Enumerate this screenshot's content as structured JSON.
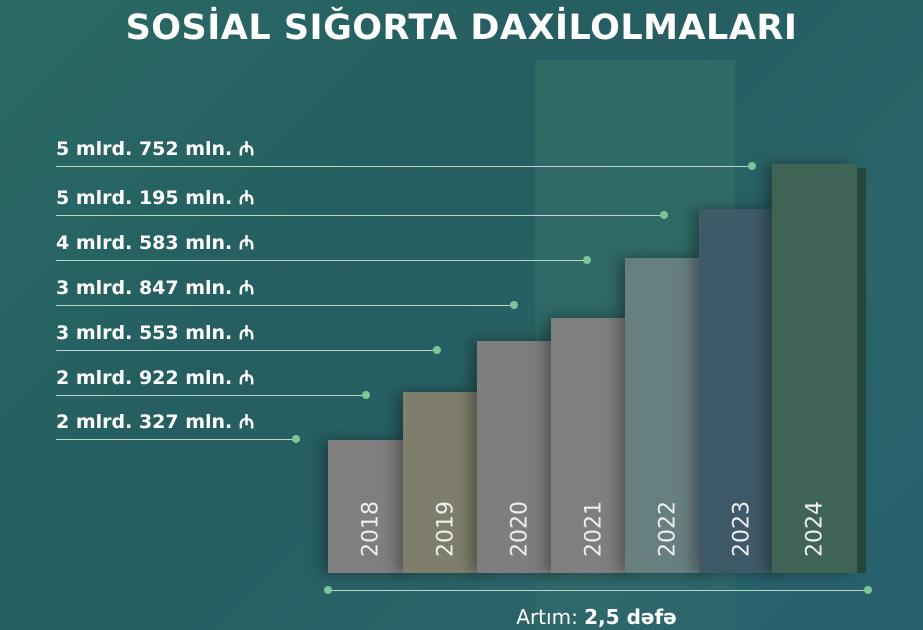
{
  "title": "SOSİAL SIĞORTA DAXİLOLMALARI",
  "chart_data": {
    "type": "bar",
    "title": "SOSİAL SIĞORTA DAXİLOLMALARI",
    "categories": [
      "2018",
      "2019",
      "2020",
      "2021",
      "2022",
      "2023",
      "2024"
    ],
    "values": [
      2327,
      2922,
      3553,
      3847,
      4583,
      5195,
      5752
    ],
    "unit": "mln. ₼",
    "labels": [
      "2 mlrd. 327 mln.",
      "2 mlrd. 922 mln.",
      "3 mlrd. 553 mln.",
      "3 mlrd. 847 mln.",
      "4 mlrd. 583 mln.",
      "5 mlrd. 195 mln.",
      "5 mlrd. 752 mln."
    ],
    "currency_symbol": "₼",
    "colors": [
      "#7f7f7f",
      "#7f7e6c",
      "#7e7e7e",
      "#7f7f7f",
      "#687f80",
      "#3e5a68",
      "#3f6455"
    ],
    "side_colors": [
      "#7d7a56",
      "#827f50",
      "#6b7c72",
      "#6f7f78",
      "#4d7a6c",
      "#2e3f57",
      "#24463d"
    ],
    "grid": false,
    "legend": "none"
  },
  "footer": {
    "label": "Artım:",
    "value": "2,5 dəfə"
  }
}
